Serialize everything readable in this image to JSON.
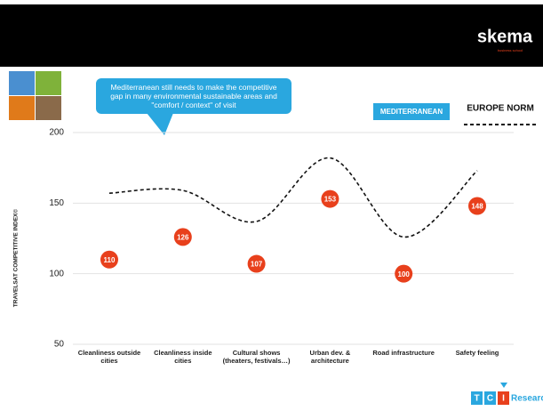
{
  "chart_data": {
    "type": "line_dots",
    "header_logo": "skema",
    "header_logo_sub": "business school",
    "callout": "Mediterranean still needs to make the competitive gap in many environmental sustainable areas and \"comfort / context\" of visit",
    "ylabel": "TRAVELSAT COMPETITIVE INDEX©",
    "categories": [
      "Cleanliness outside cities",
      "Cleanliness inside cities",
      "Cultural shows (theaters, festivals…)",
      "Urban dev. & architecture",
      "Road infrastructure",
      "Safety feeling"
    ],
    "series": [
      {
        "name": "MEDITERRANEAN",
        "color": "#e8401c",
        "values": [
          110,
          126,
          107,
          153,
          100,
          148
        ]
      },
      {
        "name": "EUROPE NORM",
        "color": "#111111",
        "values": [
          157,
          159,
          137,
          182,
          126,
          173
        ]
      }
    ],
    "ylim": [
      50,
      200
    ],
    "yticks": [
      50,
      100,
      150,
      200
    ],
    "grid": true,
    "footer_logo": [
      "T",
      "C",
      "I",
      "Research"
    ]
  }
}
